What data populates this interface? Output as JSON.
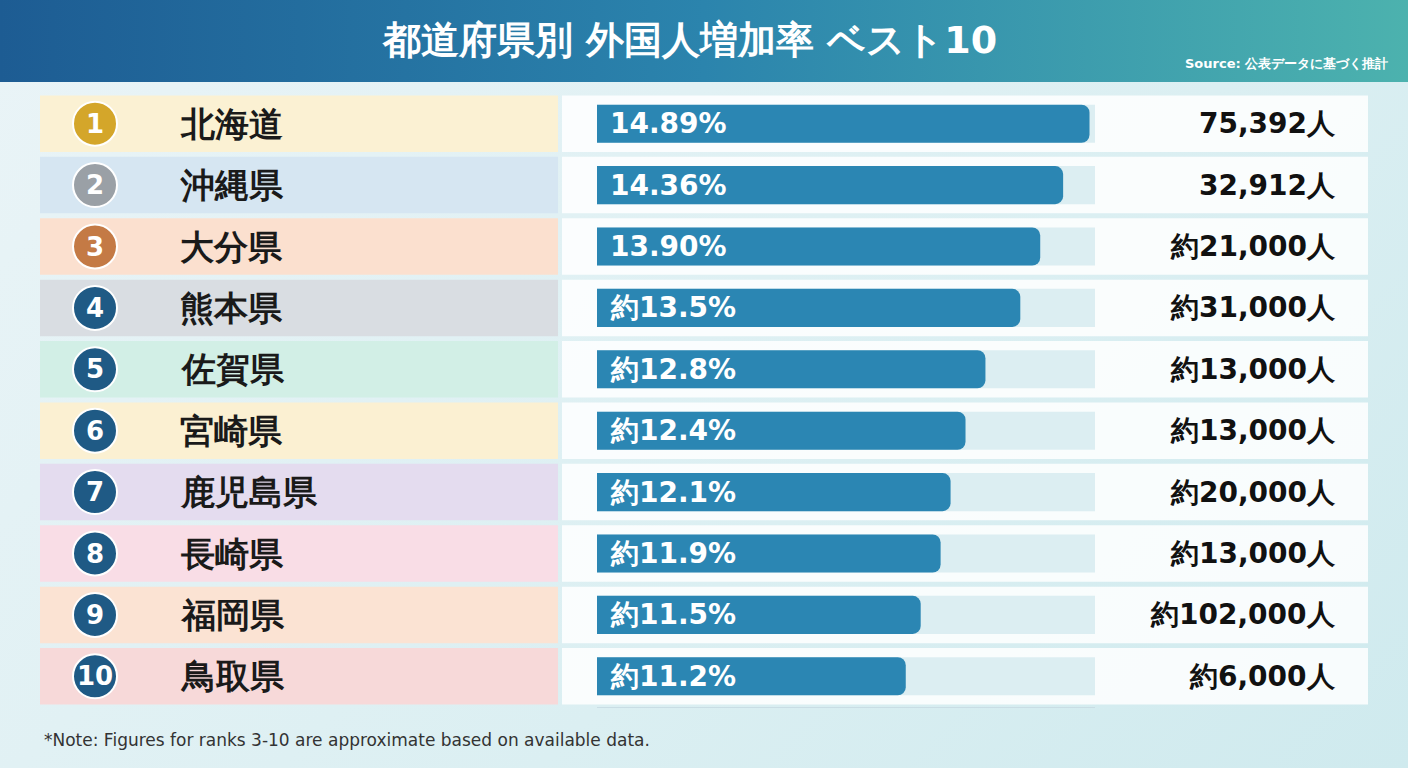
{
  "chart_data": {
    "type": "bar",
    "title": "都道府県別 外国人増加率 ベスト10",
    "subtitle": "Source: 公表データに基づく推計",
    "annotations": [
      "*Note: Figures for ranks 3-10 are approximate based on available data."
    ],
    "categories": [
      "北海道",
      "沖縄県",
      "大分県",
      "熊本県",
      "佐賀県",
      "宮崎県",
      "鹿児島県",
      "長崎県",
      "福岡県",
      "鳥取県"
    ],
    "ranks": [
      1,
      2,
      3,
      4,
      5,
      6,
      7,
      8,
      9,
      10
    ],
    "values": [
      14.89,
      14.36,
      13.9,
      13.5,
      12.8,
      12.4,
      12.1,
      11.9,
      11.5,
      11.2
    ],
    "value_labels": [
      "14.89%",
      "14.36%",
      "13.90%",
      "約13.5%",
      "約12.8%",
      "約12.4%",
      "約12.1%",
      "約11.9%",
      "約11.5%",
      "約11.2%"
    ],
    "count_labels": [
      "75,392人",
      "32,912人",
      "約21,000人",
      "約31,000人",
      "約13,000人",
      "約13,000人",
      "約20,000人",
      "約13,000人",
      "約102,000人",
      "約6,000人"
    ],
    "color": "#2b86b3",
    "orientation": "horizontal",
    "data_labels": true,
    "tick_labels": false,
    "grid": false,
    "xlim": [
      5,
      15
    ]
  }
}
